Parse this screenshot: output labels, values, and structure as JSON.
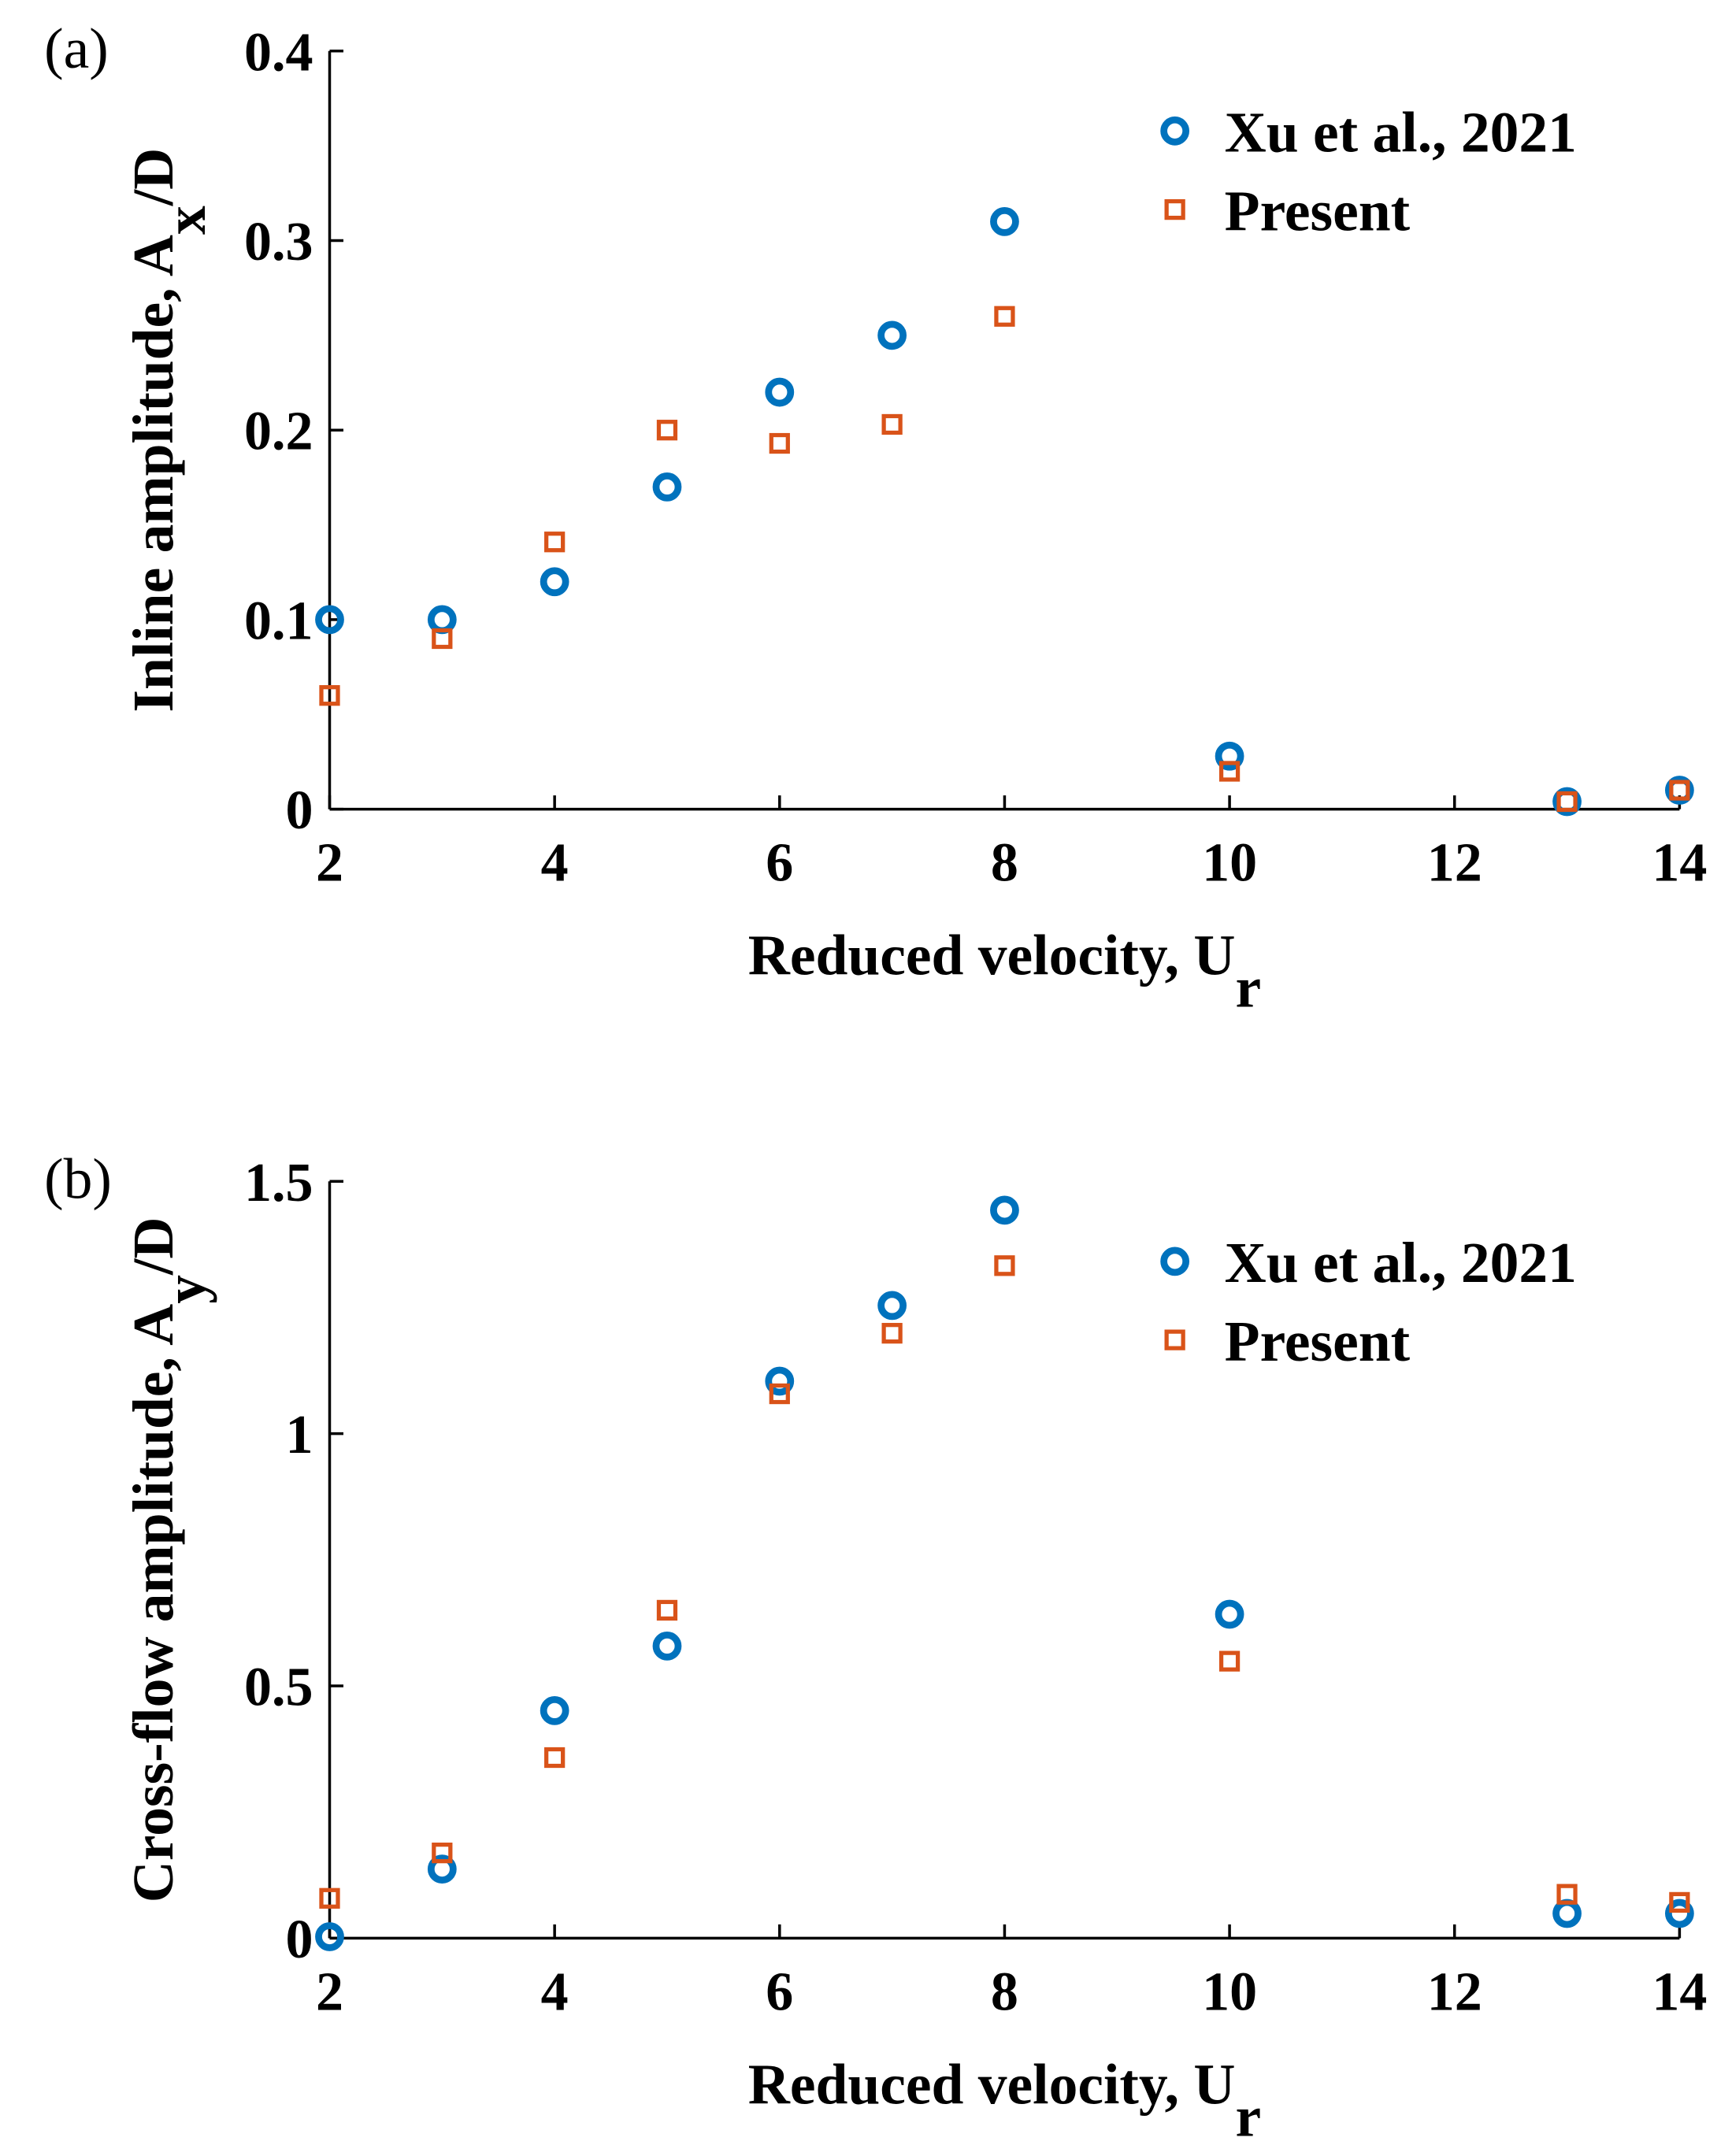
{
  "chart_data": [
    {
      "type": "scatter",
      "panel_label": "(a)",
      "xlabel": [
        {
          "text": "Reduced velocity, U"
        },
        {
          "text": "r",
          "sub": true
        }
      ],
      "ylabel": [
        {
          "text": "Inline amplitude, A"
        },
        {
          "text": "x",
          "sub": true
        },
        {
          "text": "/D"
        }
      ],
      "x": [
        2,
        3,
        4,
        5,
        6,
        7,
        8,
        10,
        13,
        14
      ],
      "series": [
        {
          "name": "Xu et al., 2021",
          "color": "#0072BD",
          "marker": "circle",
          "values": [
            0.1,
            0.1,
            0.12,
            0.17,
            0.22,
            0.25,
            0.31,
            0.028,
            0.004,
            0.01
          ]
        },
        {
          "name": "Present",
          "color": "#D95319",
          "marker": "square",
          "values": [
            0.06,
            0.09,
            0.141,
            0.2,
            0.193,
            0.203,
            0.26,
            0.02,
            0.004,
            0.01
          ]
        }
      ],
      "xlim": [
        2,
        14
      ],
      "xticks": [
        2,
        4,
        6,
        8,
        10,
        12,
        14
      ],
      "ylim": [
        0,
        0.4
      ],
      "yticks": [
        0,
        0.1,
        0.2,
        0.3,
        0.4
      ],
      "legend": "upper right",
      "grid": false
    },
    {
      "type": "scatter",
      "panel_label": "(b)",
      "xlabel": [
        {
          "text": "Reduced velocity, U"
        },
        {
          "text": "r",
          "sub": true
        }
      ],
      "ylabel": [
        {
          "text": "Cross-flow amplitude, A"
        },
        {
          "text": "y",
          "sub": true
        },
        {
          "text": "/D"
        }
      ],
      "x": [
        2,
        3,
        4,
        5,
        6,
        7,
        8,
        10,
        13,
        14
      ],
      "series": [
        {
          "name": "Xu et al., 2021",
          "color": "#0072BD",
          "marker": "circle",
          "values": [
            0.003,
            0.137,
            0.451,
            0.579,
            1.104,
            1.254,
            1.443,
            0.642,
            0.049,
            0.049
          ]
        },
        {
          "name": "Present",
          "color": "#D95319",
          "marker": "square",
          "values": [
            0.079,
            0.169,
            0.358,
            0.65,
            1.079,
            1.199,
            1.333,
            0.549,
            0.087,
            0.071
          ]
        }
      ],
      "xlim": [
        2,
        14
      ],
      "xticks": [
        2,
        4,
        6,
        8,
        10,
        12,
        14
      ],
      "ylim": [
        0,
        1.5
      ],
      "yticks": [
        0,
        0.5,
        1,
        1.5
      ],
      "legend": "upper right",
      "grid": false
    }
  ]
}
